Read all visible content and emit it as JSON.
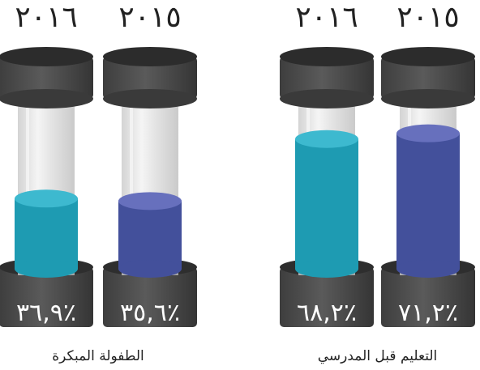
{
  "chart_data": {
    "type": "bar",
    "categories": [
      "التعليم قبل المدرسي",
      "الطفولة المبكرة"
    ],
    "series": [
      {
        "name": "٢٠١٥",
        "values": [
          71.2,
          35.6
        ]
      },
      {
        "name": "٢٠١٦",
        "values": [
          68.2,
          36.9
        ]
      }
    ],
    "value_labels": [
      [
        "٪٧١,٢",
        "٪٦٨,٢"
      ],
      [
        "٪٣٥,٦",
        "٪٣٦,٩"
      ]
    ],
    "ylim": [
      0,
      100
    ],
    "colors": {
      "2015": "#43509b",
      "2015_top": "#6770bd",
      "2016": "#1e9bb2",
      "2016_top": "#3db9cf",
      "cap": "#4b4b4b",
      "cap_top": "#2c2c2c"
    }
  }
}
